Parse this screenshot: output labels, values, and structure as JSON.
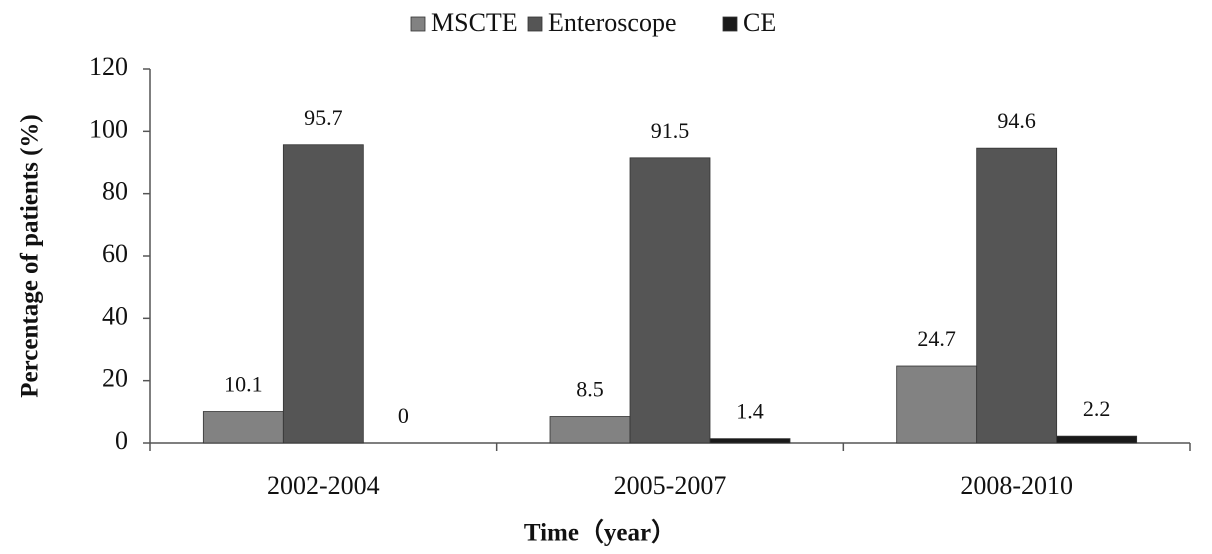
{
  "chart_data": {
    "type": "bar",
    "xlabel": "Time（year）",
    "ylabel": "Percentage of patients (%)",
    "categories": [
      "2002-2004",
      "2005-2007",
      "2008-2010"
    ],
    "series": [
      {
        "name": "MSCTE",
        "color": "#828282",
        "values": [
          10.1,
          8.5,
          24.7
        ]
      },
      {
        "name": "Enteroscope",
        "color": "#555555",
        "values": [
          95.7,
          91.5,
          94.6
        ]
      },
      {
        "name": "CE",
        "color": "#1a1a1a",
        "values": [
          0,
          1.4,
          2.2
        ]
      }
    ],
    "ylim": [
      0,
      120
    ],
    "yticks": [
      0,
      20,
      40,
      60,
      80,
      100,
      120
    ],
    "grid": false,
    "legend": "top"
  }
}
